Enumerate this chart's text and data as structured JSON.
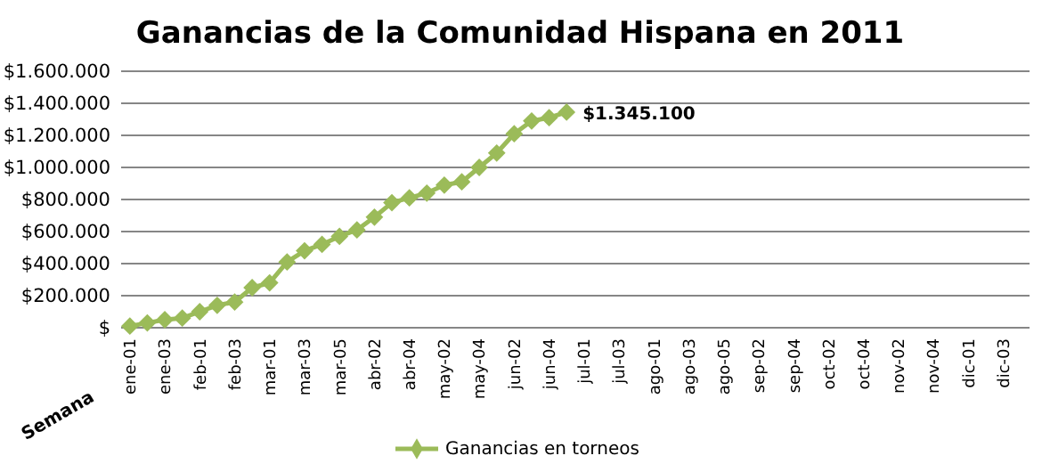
{
  "chart_data": {
    "type": "line",
    "title": "Ganancias de la Comunidad Hispana en 2011",
    "xlabel": "Semana",
    "categories": [
      "ene-01",
      null,
      "ene-03",
      null,
      "feb-01",
      null,
      "feb-03",
      null,
      "mar-01",
      null,
      "mar-03",
      null,
      "mar-05",
      null,
      "abr-02",
      null,
      "abr-04",
      null,
      "may-02",
      null,
      "may-04",
      null,
      "jun-02",
      null,
      "jun-04",
      null,
      "jul-01",
      null,
      "jul-03",
      null,
      "ago-01",
      null,
      "ago-03",
      null,
      "ago-05",
      null,
      "sep-02",
      null,
      "sep-04",
      null,
      "oct-02",
      null,
      "oct-04",
      null,
      "nov-02",
      null,
      "nov-04",
      null,
      "dic-01",
      null,
      "dic-03",
      null
    ],
    "series": [
      {
        "name": "Ganancias en torneos",
        "color": "#9bbb59",
        "values": [
          10000,
          30000,
          50000,
          60000,
          100000,
          140000,
          160000,
          250000,
          280000,
          410000,
          480000,
          520000,
          570000,
          610000,
          690000,
          780000,
          810000,
          840000,
          890000,
          910000,
          1000000,
          1090000,
          1210000,
          1290000,
          1310000,
          1345100,
          null,
          null,
          null,
          null,
          null,
          null,
          null,
          null,
          null,
          null,
          null,
          null,
          null,
          null,
          null,
          null,
          null,
          null,
          null,
          null,
          null,
          null,
          null,
          null,
          null,
          null
        ],
        "value_labels": [
          null,
          null,
          null,
          null,
          null,
          null,
          null,
          null,
          null,
          null,
          null,
          null,
          null,
          null,
          null,
          null,
          null,
          null,
          null,
          null,
          null,
          null,
          null,
          null,
          null,
          "$1.345.100",
          null,
          null,
          null,
          null,
          null,
          null,
          null,
          null,
          null,
          null,
          null,
          null,
          null,
          null,
          null,
          null,
          null,
          null,
          null,
          null,
          null,
          null,
          null,
          null,
          null,
          null
        ]
      }
    ],
    "ylim": [
      0,
      1600000
    ],
    "yticks": [
      {
        "value": 0,
        "label": "$"
      },
      {
        "value": 200000,
        "label": "$200.000"
      },
      {
        "value": 400000,
        "label": "$400.000"
      },
      {
        "value": 600000,
        "label": "$600.000"
      },
      {
        "value": 800000,
        "label": "$800.000"
      },
      {
        "value": 1000000,
        "label": "$1.000.000"
      },
      {
        "value": 1200000,
        "label": "$1.200.000"
      },
      {
        "value": 1400000,
        "label": "$1.400.000"
      },
      {
        "value": 1600000,
        "label": "$1.600.000"
      }
    ],
    "grid": "y",
    "legend": "bottom",
    "marker": "diamond",
    "line_style": "solid"
  }
}
